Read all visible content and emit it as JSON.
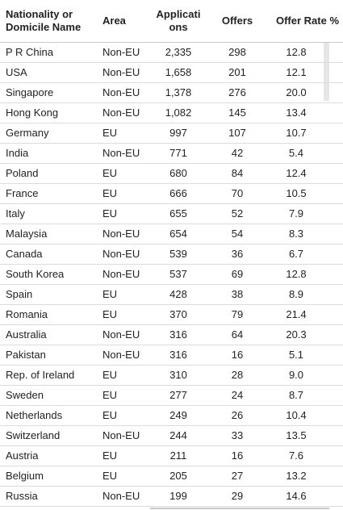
{
  "headers": {
    "nationality": "Nationality or\nDomicile Name",
    "area": "Area",
    "applications": "Applicati\nons",
    "offers": "Offers",
    "offer_rate": "Offer Rate %"
  },
  "rows": [
    {
      "name": "P R China",
      "area": "Non-EU",
      "applications": "2,335",
      "offers": "298",
      "rate": "12.8"
    },
    {
      "name": "USA",
      "area": "Non-EU",
      "applications": "1,658",
      "offers": "201",
      "rate": "12.1"
    },
    {
      "name": "Singapore",
      "area": "Non-EU",
      "applications": "1,378",
      "offers": "276",
      "rate": "20.0"
    },
    {
      "name": "Hong Kong",
      "area": "Non-EU",
      "applications": "1,082",
      "offers": "145",
      "rate": "13.4"
    },
    {
      "name": "Germany",
      "area": "EU",
      "applications": "997",
      "offers": "107",
      "rate": "10.7"
    },
    {
      "name": "India",
      "area": "Non-EU",
      "applications": "771",
      "offers": "42",
      "rate": "5.4"
    },
    {
      "name": "Poland",
      "area": "EU",
      "applications": "680",
      "offers": "84",
      "rate": "12.4"
    },
    {
      "name": "France",
      "area": "EU",
      "applications": "666",
      "offers": "70",
      "rate": "10.5"
    },
    {
      "name": "Italy",
      "area": "EU",
      "applications": "655",
      "offers": "52",
      "rate": "7.9"
    },
    {
      "name": "Malaysia",
      "area": "Non-EU",
      "applications": "654",
      "offers": "54",
      "rate": "8.3"
    },
    {
      "name": "Canada",
      "area": "Non-EU",
      "applications": "539",
      "offers": "36",
      "rate": "6.7"
    },
    {
      "name": "South Korea",
      "area": "Non-EU",
      "applications": "537",
      "offers": "69",
      "rate": "12.8"
    },
    {
      "name": "Spain",
      "area": "EU",
      "applications": "428",
      "offers": "38",
      "rate": "8.9"
    },
    {
      "name": "Romania",
      "area": "EU",
      "applications": "370",
      "offers": "79",
      "rate": "21.4"
    },
    {
      "name": "Australia",
      "area": "Non-EU",
      "applications": "316",
      "offers": "64",
      "rate": "20.3"
    },
    {
      "name": "Pakistan",
      "area": "Non-EU",
      "applications": "316",
      "offers": "16",
      "rate": "5.1"
    },
    {
      "name": "Rep. of Ireland",
      "area": "EU",
      "applications": "310",
      "offers": "28",
      "rate": "9.0"
    },
    {
      "name": "Sweden",
      "area": "EU",
      "applications": "277",
      "offers": "24",
      "rate": "8.7"
    },
    {
      "name": "Netherlands",
      "area": "EU",
      "applications": "249",
      "offers": "26",
      "rate": "10.4"
    },
    {
      "name": "Switzerland",
      "area": "Non-EU",
      "applications": "244",
      "offers": "33",
      "rate": "13.5"
    },
    {
      "name": "Austria",
      "area": "EU",
      "applications": "211",
      "offers": "16",
      "rate": "7.6"
    },
    {
      "name": "Belgium",
      "area": "EU",
      "applications": "205",
      "offers": "27",
      "rate": "13.2"
    },
    {
      "name": "Russia",
      "area": "Non-EU",
      "applications": "199",
      "offers": "29",
      "rate": "14.6"
    }
  ]
}
